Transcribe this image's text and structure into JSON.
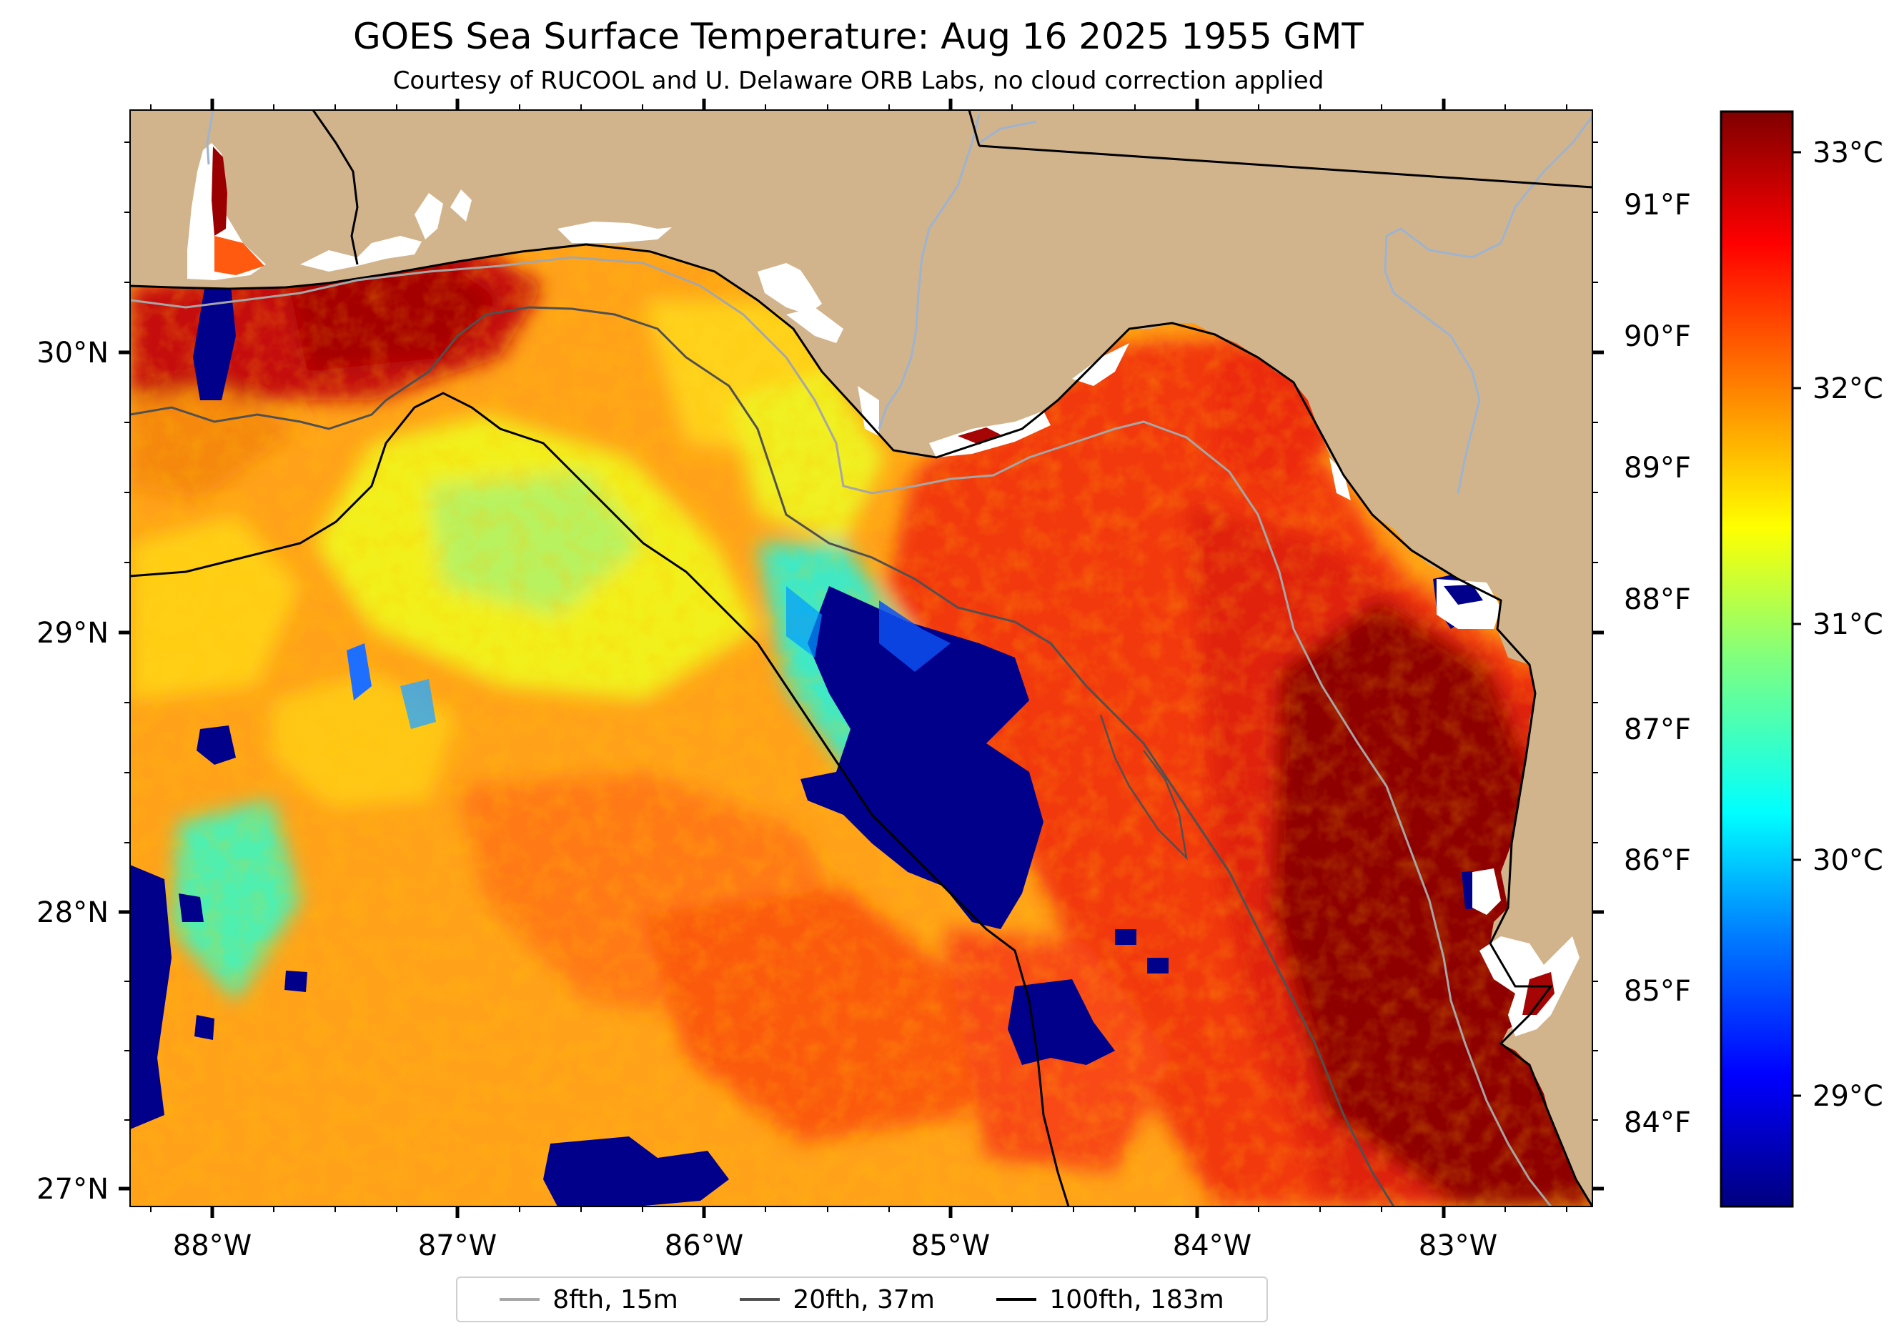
{
  "title": "GOES Sea Surface Temperature: Aug 16 2025 1955 GMT",
  "subtitle": "Courtesy of RUCOOL and U. Delaware ORB Labs, no cloud correction applied",
  "map": {
    "lon_range": [
      -88.33,
      -82.38
    ],
    "lat_range": [
      26.93,
      30.85
    ],
    "lon_ticks": [
      "88°W",
      "87°W",
      "86°W",
      "85°W",
      "84°W",
      "83°W"
    ],
    "lat_ticks": [
      "27°N",
      "28°N",
      "29°N",
      "30°N"
    ],
    "land_color": "#d2b48c",
    "features": [
      "coastline",
      "state-borders",
      "rivers",
      "isobath-15m",
      "isobath-37m",
      "isobath-183m",
      "sst-field"
    ]
  },
  "fahrenheit_ticks": [
    "84°F",
    "85°F",
    "86°F",
    "87°F",
    "88°F",
    "89°F",
    "90°F",
    "91°F"
  ],
  "colorbar": {
    "colormap": "jet",
    "range_c": [
      28.6,
      33.3
    ],
    "ticks": [
      "29°C",
      "30°C",
      "31°C",
      "32°C",
      "33°C"
    ],
    "colors": [
      "#00007f",
      "#0000ff",
      "#007fff",
      "#00ffff",
      "#7fff7f",
      "#ffff00",
      "#ff7f00",
      "#ff0000",
      "#7f0000"
    ]
  },
  "legend": {
    "position": "bottom-center",
    "items": [
      {
        "label": "8fth, 15m",
        "color": "#a6a6a6"
      },
      {
        "label": "20fth, 37m",
        "color": "#505050"
      },
      {
        "label": "100fth, 183m",
        "color": "#000000"
      }
    ]
  }
}
